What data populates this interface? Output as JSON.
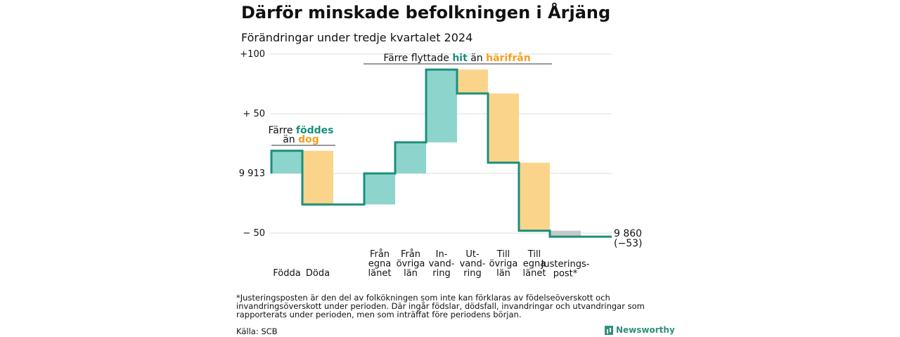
{
  "title": "Därför minskade befolkningen i Årjäng",
  "subtitle": "Förändringar under tredje kvartalet 2024",
  "footnote": "*Justeringsposten är den del av folkökningen som inte kan förklaras av födelseöverskott och invandringsöverskott under perioden. Där ingår födslar, dödsfall, invandringar och utvandringar som rapporterats under perioden, men som inträffat före periodens början.",
  "source": "Källa: SCB",
  "brand": "Newsworthy",
  "colors": {
    "increase": "#8dd5cc",
    "decrease": "#fbd48c",
    "adjustment": "#c8c8c8",
    "line": "#1a8f7c",
    "accent_teal": "#1a8f7c",
    "accent_orange": "#f0a020"
  },
  "annotations": {
    "births": {
      "line1_a": "Färre ",
      "line1_b": "föddes",
      "line2_a": "än ",
      "line2_b": "dog"
    },
    "moves": {
      "a": "Färre flyttade ",
      "b": "hit",
      "c": " än ",
      "d": "härifrån"
    }
  },
  "chart_data": {
    "type": "waterfall",
    "start_value": 9913,
    "end_value": 9860,
    "end_label_line1": "9 860",
    "end_label_line2": "(−53)",
    "ylim": [
      -60,
      100
    ],
    "y_ticks": [
      {
        "value": 100,
        "label": "+100"
      },
      {
        "value": 50,
        "label": "+ 50"
      },
      {
        "value": 0,
        "label": "9 913"
      },
      {
        "value": -50,
        "label": "− 50"
      }
    ],
    "steps": [
      {
        "label": "Födda",
        "change": 19,
        "kind": "increase",
        "label_lines": [
          "Födda"
        ]
      },
      {
        "label": "Döda",
        "change": -45,
        "kind": "decrease",
        "label_lines": [
          "Döda"
        ]
      },
      {
        "label": "",
        "change": 0,
        "kind": "gap",
        "label_lines": []
      },
      {
        "label": "Från egna länet",
        "change": 26,
        "kind": "increase",
        "label_lines": [
          "Från",
          "egna",
          "länet"
        ]
      },
      {
        "label": "Från övriga län",
        "change": 26,
        "kind": "increase",
        "label_lines": [
          "Från",
          "övriga",
          "län"
        ]
      },
      {
        "label": "Invandring",
        "change": 61,
        "kind": "increase",
        "label_lines": [
          "In-",
          "vand-",
          "ring"
        ]
      },
      {
        "label": "Utvandring",
        "change": -20,
        "kind": "decrease",
        "label_lines": [
          "Ut-",
          "vand-",
          "ring"
        ]
      },
      {
        "label": "Till övriga län",
        "change": -58,
        "kind": "decrease",
        "label_lines": [
          "Till",
          "övriga",
          "län"
        ]
      },
      {
        "label": "Till egna länet",
        "change": -57,
        "kind": "decrease",
        "label_lines": [
          "Till",
          "egna",
          "länet"
        ]
      },
      {
        "label": "Justeringspost*",
        "change": -5,
        "kind": "adjustment",
        "label_lines": [
          "Justerings-",
          "post*"
        ]
      }
    ]
  }
}
